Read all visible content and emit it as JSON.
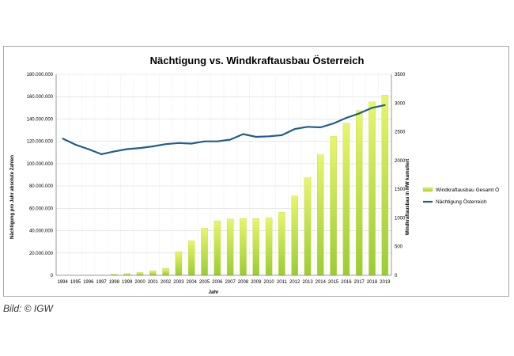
{
  "caption": "Bild: © IGW",
  "chart_data": {
    "type": "bar",
    "title": "Nächtigung vs. Windkraftausbau Österreich",
    "xlabel": "Jahr",
    "ylabel_left": "Nächtigung pro Jahr absolute Zahlen",
    "ylabel_right": "Windkraftausbau in MW kumuliert",
    "y_left_ticks": [
      "0",
      "20.000.000",
      "40.000.000",
      "60.000.000",
      "80.000.000",
      "100.000.000",
      "120.000.000",
      "140.000.000",
      "160.000.000",
      "180.000.000"
    ],
    "y_right_ticks": [
      "0",
      "500",
      "1000",
      "1500",
      "2000",
      "2500",
      "3000",
      "3500"
    ],
    "ylim_left": [
      0,
      180000000
    ],
    "ylim_right": [
      0,
      3500
    ],
    "categories": [
      "1994",
      "1995",
      "1996",
      "1997",
      "1998",
      "1999",
      "2000",
      "2001",
      "2002",
      "2003",
      "2004",
      "2005",
      "2006",
      "2007",
      "2008",
      "2009",
      "2010",
      "2011",
      "2012",
      "2013",
      "2014",
      "2015",
      "2016",
      "2017",
      "2018",
      "2019"
    ],
    "series": [
      {
        "name": "Windkraftausbau Gesamt Ö",
        "type": "bar",
        "axis": "right",
        "color": "#9acd32",
        "values": [
          0,
          0,
          2,
          5,
          20,
          30,
          50,
          80,
          120,
          410,
          600,
          820,
          950,
          980,
          990,
          990,
          1000,
          1100,
          1380,
          1700,
          2100,
          2420,
          2650,
          2870,
          3020,
          3140
        ]
      },
      {
        "name": "Nächtigung Österreich",
        "type": "line",
        "axis": "left",
        "color": "#1f5f8b",
        "values": [
          122500000,
          117000000,
          113000000,
          108500000,
          111000000,
          113000000,
          114000000,
          115500000,
          117500000,
          118500000,
          118000000,
          120000000,
          120000000,
          121500000,
          126500000,
          124000000,
          124500000,
          125500000,
          131000000,
          133000000,
          132500000,
          136000000,
          141000000,
          145000000,
          150000000,
          152500000
        ]
      }
    ],
    "grid": true,
    "legend": "right"
  }
}
